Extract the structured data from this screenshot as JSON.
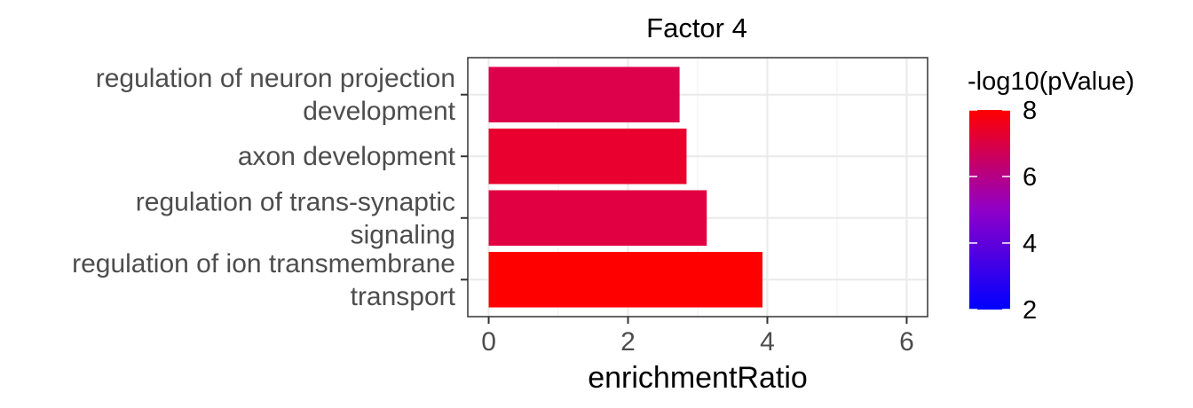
{
  "chart_data": {
    "type": "bar",
    "orientation": "horizontal",
    "title": "Factor 4",
    "xlabel": "enrichmentRatio",
    "ylabel": "",
    "xlim": [
      -0.3,
      6.3
    ],
    "x_ticks": [
      0,
      2,
      4,
      6
    ],
    "grid": true,
    "categories": [
      [
        "regulation of neuron projection",
        "development"
      ],
      [
        "axon development"
      ],
      [
        "regulation of trans-synaptic",
        "signaling"
      ],
      [
        "regulation of ion transmembrane",
        "transport"
      ]
    ],
    "values": [
      2.74,
      2.84,
      3.13,
      3.93
    ],
    "color_values": [
      7.2,
      7.5,
      7.3,
      8.0
    ],
    "color_scale": {
      "title": "-log10(pValue)",
      "min": 2,
      "max": 8,
      "ticks": [
        2,
        4,
        6,
        8
      ],
      "low_color": "#0000ff",
      "high_color": "#ff0000"
    },
    "legend_position": "right"
  }
}
